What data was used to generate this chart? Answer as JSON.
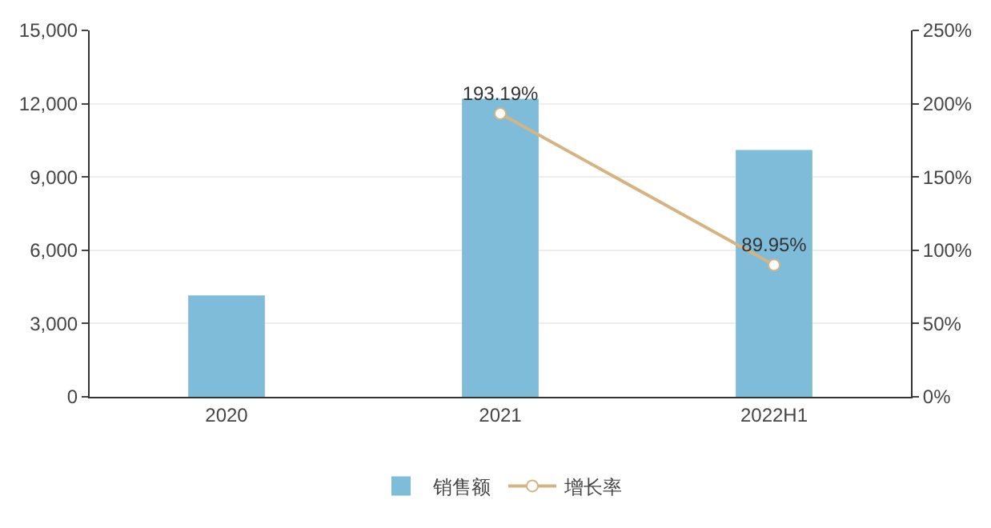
{
  "chart_data": {
    "type": "bar",
    "categories": [
      "2020",
      "2021",
      "2022H1"
    ],
    "series": [
      {
        "name": "销售额",
        "color": "#7fbcd9",
        "values": [
          4150,
          12200,
          10100
        ]
      },
      {
        "name": "增长率",
        "type": "line",
        "axis": "y2",
        "color": "#d4b483",
        "values": [
          null,
          193.19,
          89.95
        ],
        "value_labels": [
          null,
          "193.19%",
          "89.95%"
        ]
      }
    ],
    "ylim": [
      0,
      15000
    ],
    "yticks": [
      {
        "value": 0,
        "label": "0"
      },
      {
        "value": 3000,
        "label": "3,000"
      },
      {
        "value": 6000,
        "label": "6,000"
      },
      {
        "value": 9000,
        "label": "9,000"
      },
      {
        "value": 12000,
        "label": "12,000"
      },
      {
        "value": 15000,
        "label": "15,000"
      }
    ],
    "y2lim": [
      0,
      250
    ],
    "y2ticks": [
      {
        "value": 0,
        "label": "0%"
      },
      {
        "value": 50,
        "label": "50%"
      },
      {
        "value": 100,
        "label": "100%"
      },
      {
        "value": 150,
        "label": "150%"
      },
      {
        "value": 200,
        "label": "200%"
      },
      {
        "value": 250,
        "label": "250%"
      }
    ],
    "grid": "y",
    "legend": "bottom",
    "marker": "circle"
  }
}
